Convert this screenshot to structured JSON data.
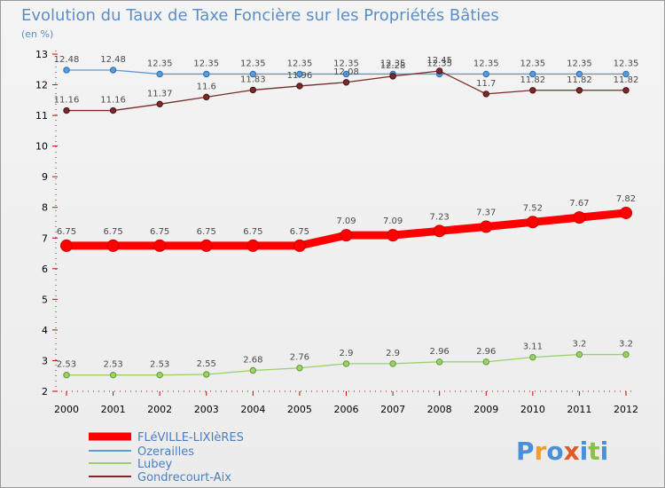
{
  "chart_data": {
    "type": "line",
    "title": "Evolution du Taux de Taxe Foncière sur les Propriétés Bâties",
    "subtitle": "(en %)",
    "xlabel": "",
    "ylabel": "(en %)",
    "ylim": [
      2,
      13
    ],
    "yticks": [
      2,
      3,
      4,
      5,
      6,
      7,
      8,
      9,
      10,
      11,
      12,
      13
    ],
    "x": [
      "2000",
      "2001",
      "2002",
      "2003",
      "2004",
      "2005",
      "2006",
      "2007",
      "2008",
      "2009",
      "2010",
      "2011",
      "2012"
    ],
    "grid": false,
    "legend": "bottom-left",
    "series": [
      {
        "name": "FLéVILLE-LIXIèRES",
        "color": "#ff0000",
        "values": [
          6.75,
          6.75,
          6.75,
          6.75,
          6.75,
          6.75,
          7.09,
          7.09,
          7.23,
          7.37,
          7.52,
          7.67,
          7.82
        ],
        "labels": [
          "6.75",
          "6.75",
          "6.75",
          "6.75",
          "6.75",
          "6.75",
          "7.09",
          "7.09",
          "7.23",
          "7.37",
          "7.52",
          "7.67",
          "7.82"
        ]
      },
      {
        "name": "Ozerailles",
        "color": "#5a9bd5",
        "values": [
          12.48,
          12.48,
          12.35,
          12.35,
          12.35,
          12.35,
          12.35,
          12.35,
          12.35,
          12.35,
          12.35,
          12.35,
          12.35
        ],
        "labels": [
          "12.48",
          "12.48",
          "12.35",
          "12.35",
          "12.35",
          "12.35",
          "12.35",
          "12.35",
          "12.35",
          "12.35",
          "12.35",
          "12.35",
          "12.35"
        ]
      },
      {
        "name": "Lubey",
        "color": "#9bd16a",
        "values": [
          2.53,
          2.53,
          2.53,
          2.55,
          2.68,
          2.76,
          2.9,
          2.9,
          2.96,
          2.96,
          3.11,
          3.2,
          3.2
        ],
        "labels": [
          "2.53",
          "2.53",
          "2.53",
          "2.55",
          "2.68",
          "2.76",
          "2.9",
          "2.9",
          "2.96",
          "2.96",
          "3.11",
          "3.2",
          "3.2"
        ]
      },
      {
        "name": "Gondrecourt-Aix",
        "color": "#7a2a2a",
        "values": [
          11.16,
          11.16,
          11.37,
          11.6,
          11.83,
          11.96,
          12.08,
          12.28,
          12.45,
          11.7,
          11.82,
          11.82,
          11.82
        ],
        "labels": [
          "11.16",
          "11.16",
          "11.37",
          "11.6",
          "11.83",
          "11.96",
          "12.08",
          "12.28",
          "12.45",
          "11.7",
          "11.82",
          "11.82",
          "11.82"
        ]
      }
    ]
  },
  "brand": {
    "letters": [
      "P",
      "r",
      "o",
      "x",
      "i",
      "t",
      "i"
    ],
    "colors": [
      "#4a90d9",
      "#f0a020",
      "#4a90d9",
      "#e05a2a",
      "#4a90d9",
      "#8cc04a",
      "#4a90d9"
    ]
  }
}
